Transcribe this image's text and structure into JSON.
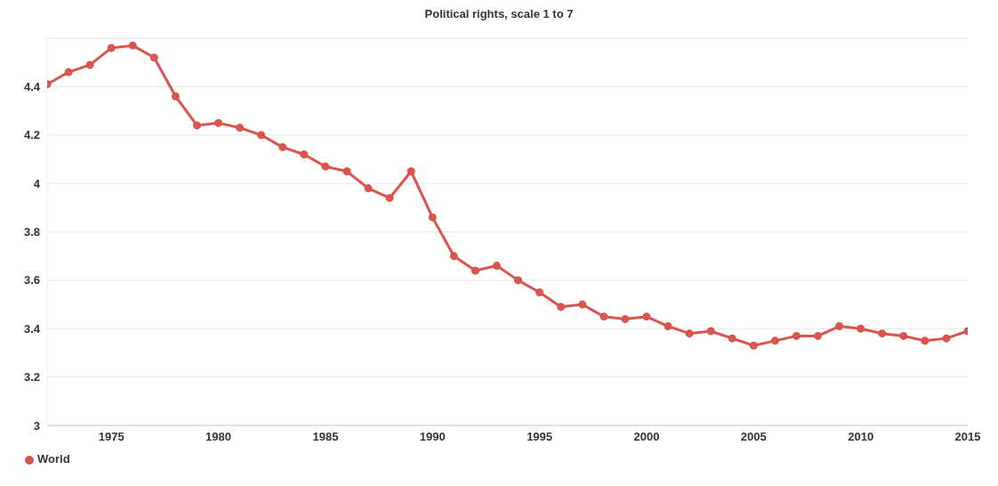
{
  "chart_data": {
    "type": "line",
    "title": "Political rights, scale 1 to 7",
    "x": [
      1972,
      1973,
      1974,
      1975,
      1976,
      1977,
      1978,
      1979,
      1980,
      1981,
      1982,
      1983,
      1984,
      1985,
      1986,
      1987,
      1988,
      1989,
      1990,
      1991,
      1992,
      1993,
      1994,
      1995,
      1996,
      1997,
      1998,
      1999,
      2000,
      2001,
      2002,
      2003,
      2004,
      2005,
      2006,
      2007,
      2008,
      2009,
      2010,
      2011,
      2012,
      2013,
      2014,
      2015
    ],
    "series": [
      {
        "name": "World",
        "color": "#d9534f",
        "values": [
          4.41,
          4.46,
          4.49,
          4.56,
          4.57,
          4.52,
          4.36,
          4.24,
          4.25,
          4.23,
          4.2,
          4.15,
          4.12,
          4.07,
          4.05,
          3.98,
          3.94,
          4.05,
          3.86,
          3.7,
          3.64,
          3.66,
          3.6,
          3.55,
          3.49,
          3.5,
          3.45,
          3.44,
          3.45,
          3.41,
          3.38,
          3.39,
          3.36,
          3.33,
          3.35,
          3.37,
          3.37,
          3.41,
          3.4,
          3.38,
          3.37,
          3.35,
          3.36,
          3.39
        ]
      }
    ],
    "xlim": [
      1972,
      2015
    ],
    "xticks": [
      1975,
      1980,
      1985,
      1990,
      1995,
      2000,
      2005,
      2010,
      2015
    ],
    "ylim": [
      3,
      4.6
    ],
    "yticks": [
      3,
      3.2,
      3.4,
      3.6,
      3.8,
      4,
      4.2,
      4.4
    ],
    "grid": "y",
    "legend": "bottom left",
    "marker": "circle",
    "line_style": "solid"
  }
}
